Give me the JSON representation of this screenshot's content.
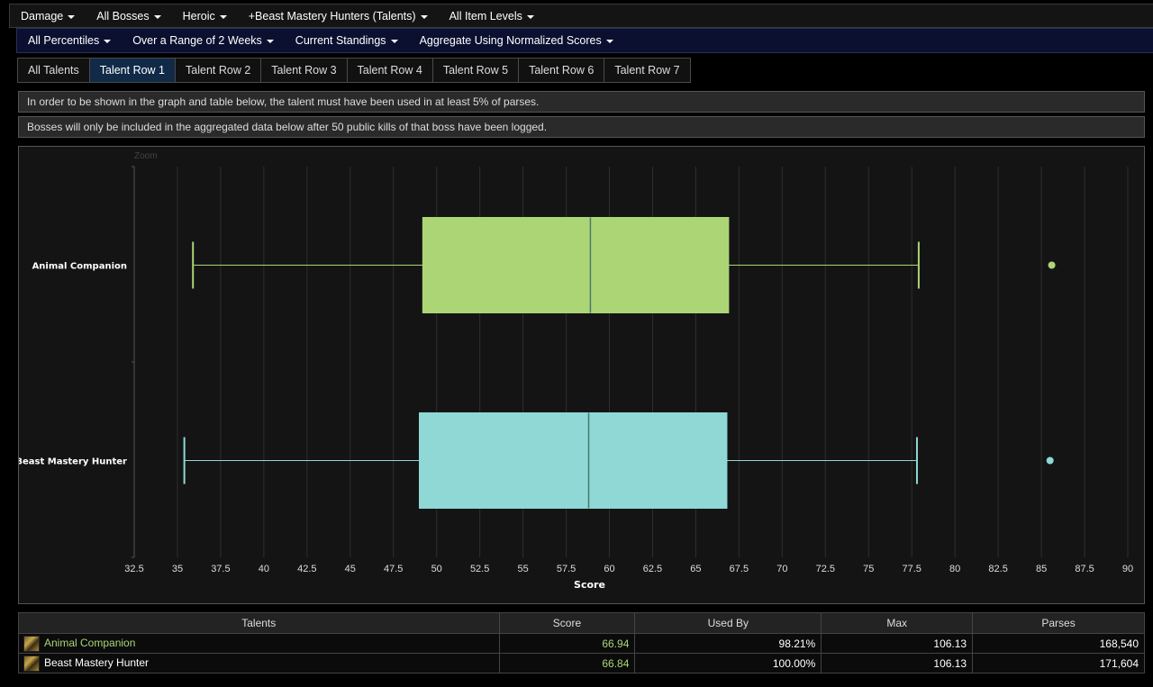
{
  "menu_primary": [
    {
      "label": "Damage"
    },
    {
      "label": "All Bosses"
    },
    {
      "label": "Heroic"
    },
    {
      "label": "+Beast Mastery Hunters (Talents)"
    },
    {
      "label": "All Item Levels"
    }
  ],
  "menu_secondary": [
    {
      "label": "All Percentiles"
    },
    {
      "label": "Over a Range of 2 Weeks"
    },
    {
      "label": "Current Standings"
    },
    {
      "label": "Aggregate Using Normalized Scores"
    }
  ],
  "tabs": [
    {
      "label": "All Talents",
      "active": false
    },
    {
      "label": "Talent Row 1",
      "active": true
    },
    {
      "label": "Talent Row 2",
      "active": false
    },
    {
      "label": "Talent Row 3",
      "active": false
    },
    {
      "label": "Talent Row 4",
      "active": false
    },
    {
      "label": "Talent Row 5",
      "active": false
    },
    {
      "label": "Talent Row 6",
      "active": false
    },
    {
      "label": "Talent Row 7",
      "active": false
    }
  ],
  "notices": {
    "usage": "In order to be shown in the graph and table below, the talent must have been used in at least 5% of parses.",
    "bosses": "Bosses will only be included in the aggregated data below after 50 public kills of that boss have been logged."
  },
  "chart_zoom_label": "Zoom",
  "chart_data": {
    "type": "boxplot",
    "orientation": "horizontal",
    "xlabel": "Score",
    "xlim": [
      32.5,
      90
    ],
    "xticks": [
      32.5,
      35,
      37.5,
      40,
      42.5,
      45,
      47.5,
      50,
      52.5,
      55,
      57.5,
      60,
      62.5,
      65,
      67.5,
      70,
      72.5,
      75,
      77.5,
      80,
      82.5,
      85,
      87.5,
      90
    ],
    "tick_labels": [
      "32.5",
      "35",
      "37.5",
      "40",
      "42.5",
      "45",
      "47.5",
      "50",
      "52.5",
      "55",
      "57.5",
      "60",
      "62.5",
      "65",
      "67.5",
      "70",
      "72.5",
      "75",
      "77.5",
      "80",
      "82.5",
      "85",
      "87.5",
      "90"
    ],
    "grid": true,
    "series": [
      {
        "name": "Animal Companion",
        "color": "#acd676",
        "low": 35.9,
        "q1": 49.2,
        "median": 58.9,
        "q3": 66.9,
        "high": 77.9,
        "outliers": [
          85.6
        ]
      },
      {
        "name": "Beast Mastery Hunter",
        "color": "#8fd8d6",
        "low": 35.4,
        "q1": 49.0,
        "median": 58.8,
        "q3": 66.8,
        "high": 77.8,
        "outliers": [
          85.5
        ]
      }
    ]
  },
  "table": {
    "headers": [
      "Talents",
      "Score",
      "Used By",
      "Max",
      "Parses"
    ],
    "rows": [
      {
        "name": "Animal Companion",
        "name_color": "#a9d67a",
        "score": "66.94",
        "used_by": "98.21%",
        "max": "106.13",
        "parses": "168,540"
      },
      {
        "name": "Beast Mastery Hunter",
        "name_color": "#ffffff",
        "score": "66.84",
        "used_by": "100.00%",
        "max": "106.13",
        "parses": "171,604"
      }
    ]
  }
}
